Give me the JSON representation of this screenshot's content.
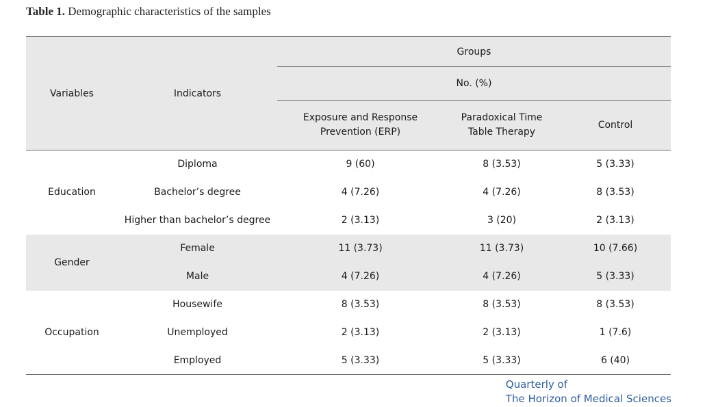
{
  "caption": {
    "label": "Table 1.",
    "text": " Demographic characteristics of the samples"
  },
  "header": {
    "variables": "Variables",
    "indicators": "Indicators",
    "groups": "Groups",
    "no_pct": "No. (%)",
    "col_erp_line1": "Exposure and Response",
    "col_erp_line2": "Prevention (ERP)",
    "col_pttt_line1": "Paradoxical Time",
    "col_pttt_line2": "Table Therapy",
    "col_control": "Control"
  },
  "sections": [
    {
      "variable": "Education",
      "rows": [
        {
          "indicator": "Diploma",
          "erp": "9 (60)",
          "pttt": "8 (3.53)",
          "control": "5 (3.33)"
        },
        {
          "indicator": "Bachelor’s degree",
          "erp": "4 (7.26)",
          "pttt": "4 (7.26)",
          "control": "8 (3.53)"
        },
        {
          "indicator": "Higher than bachelor’s degree",
          "erp": "2 (3.13)",
          "pttt": "3 (20)",
          "control": "2 (3.13)"
        }
      ]
    },
    {
      "variable": "Gender",
      "rows": [
        {
          "indicator": "Female",
          "erp": "11 (3.73)",
          "pttt": "11 (3.73)",
          "control": "10 (7.66)"
        },
        {
          "indicator": "Male",
          "erp": "4 (7.26)",
          "pttt": "4 (7.26)",
          "control": "5 (3.33)"
        }
      ]
    },
    {
      "variable": "Occupation",
      "rows": [
        {
          "indicator": "Housewife",
          "erp": "8 (3.53)",
          "pttt": "8 (3.53)",
          "control": "8 (3.53)"
        },
        {
          "indicator": "Unemployed",
          "erp": "2 (3.13)",
          "pttt": "2 (3.13)",
          "control": "1 (7.6)"
        },
        {
          "indicator": "Employed",
          "erp": "5 (3.33)",
          "pttt": "5 (3.33)",
          "control": "6 (40)"
        }
      ]
    }
  ],
  "journal": {
    "line1": "Quarterly of",
    "line2": "The Horizon of Medical Sciences"
  }
}
